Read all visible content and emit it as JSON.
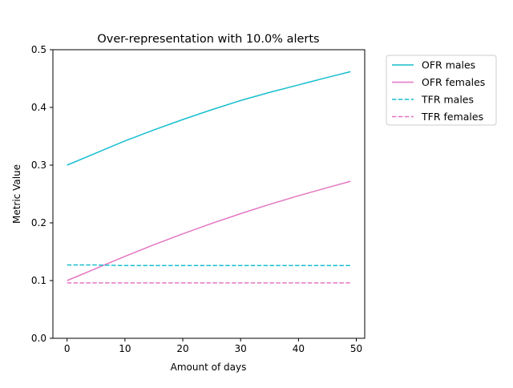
{
  "chart_data": {
    "type": "line",
    "title": "Over-representation with 10.0% alerts",
    "xlabel": "Amount of days",
    "ylabel": "Metric Value",
    "xlim": [
      -2.45,
      51.45
    ],
    "ylim": [
      0,
      0.5
    ],
    "xticks": [
      0,
      10,
      20,
      30,
      40,
      50
    ],
    "yticks": [
      0.0,
      0.1,
      0.2,
      0.3,
      0.4,
      0.5
    ],
    "xtick_labels": [
      "0",
      "10",
      "20",
      "30",
      "40",
      "50"
    ],
    "ytick_labels": [
      "0.0",
      "0.1",
      "0.2",
      "0.3",
      "0.4",
      "0.5"
    ],
    "grid": false,
    "legend_position": "outside upper right",
    "x": [
      0,
      5,
      10,
      15,
      20,
      25,
      30,
      35,
      40,
      45,
      49
    ],
    "series": [
      {
        "name": "OFR males",
        "color": "#17becf",
        "style": "solid",
        "values": [
          0.3,
          0.321,
          0.342,
          0.361,
          0.379,
          0.396,
          0.412,
          0.426,
          0.439,
          0.452,
          0.462
        ]
      },
      {
        "name": "OFR females",
        "color": "#e377c2",
        "style": "solid",
        "values": [
          0.1,
          0.121,
          0.142,
          0.162,
          0.181,
          0.199,
          0.216,
          0.232,
          0.247,
          0.261,
          0.272
        ]
      },
      {
        "name": "TFR males",
        "color": "#17becf",
        "style": "dashed",
        "values": [
          0.127,
          0.127,
          0.126,
          0.126,
          0.126,
          0.126,
          0.126,
          0.126,
          0.126,
          0.126,
          0.126
        ]
      },
      {
        "name": "TFR females",
        "color": "#e377c2",
        "style": "dashed",
        "values": [
          0.096,
          0.096,
          0.096,
          0.096,
          0.096,
          0.096,
          0.096,
          0.096,
          0.096,
          0.096,
          0.096
        ]
      }
    ]
  }
}
